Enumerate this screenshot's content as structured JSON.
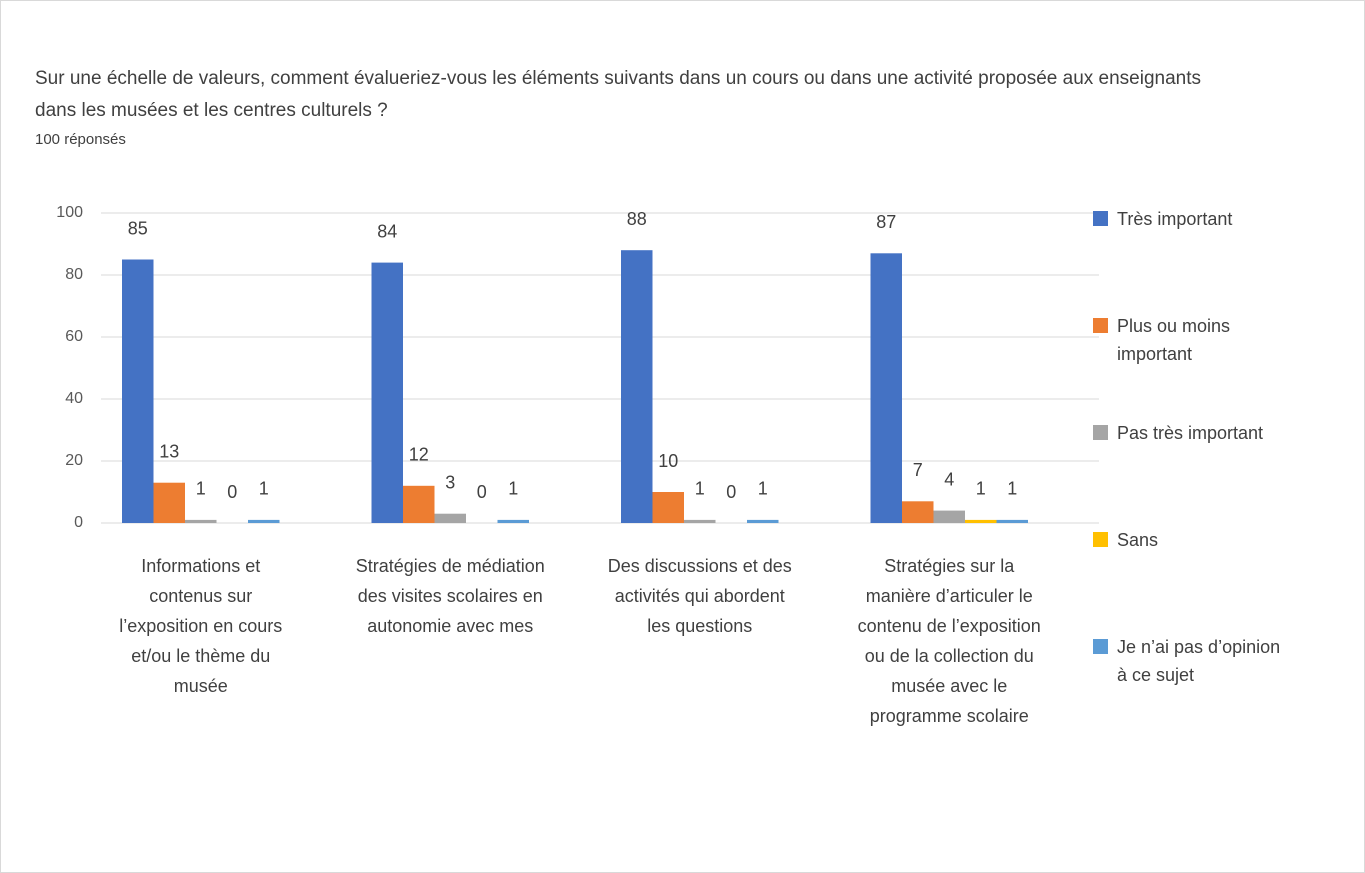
{
  "chart_data": {
    "type": "bar",
    "title": "Sur une échelle de valeurs, comment évalueriez-vous les éléments suivants dans un cours ou dans une activité proposée aux enseignants dans les musées et les centres culturels ?",
    "subtitle": "100 réponsés",
    "categories": [
      "Informations et contenus sur l’exposition en cours et/ou le thème du musée",
      "Stratégies de médiation des visites scolaires en autonomie avec mes",
      "Des discussions et des activités qui abordent les questions",
      "Stratégies sur la manière d’articuler le contenu de l’exposition ou de la collection du musée avec le programme scolaire"
    ],
    "series": [
      {
        "name": "Très important",
        "color": "#4472c4",
        "values": [
          85,
          84,
          88,
          87
        ]
      },
      {
        "name": "Plus ou moins important",
        "color": "#ed7d31",
        "values": [
          13,
          12,
          10,
          7
        ]
      },
      {
        "name": "Pas très important",
        "color": "#a5a5a5",
        "values": [
          1,
          3,
          1,
          4
        ]
      },
      {
        "name": "Sans",
        "color": "#ffc000",
        "values": [
          0,
          0,
          0,
          1
        ]
      },
      {
        "name": "Je n’ai pas d’opinion à ce sujet",
        "color": "#5b9bd5",
        "values": [
          1,
          1,
          1,
          1
        ]
      }
    ],
    "ylim": [
      0,
      100
    ],
    "yticks": [
      0,
      20,
      40,
      60,
      80,
      100
    ],
    "grid": true,
    "legend": "right"
  }
}
